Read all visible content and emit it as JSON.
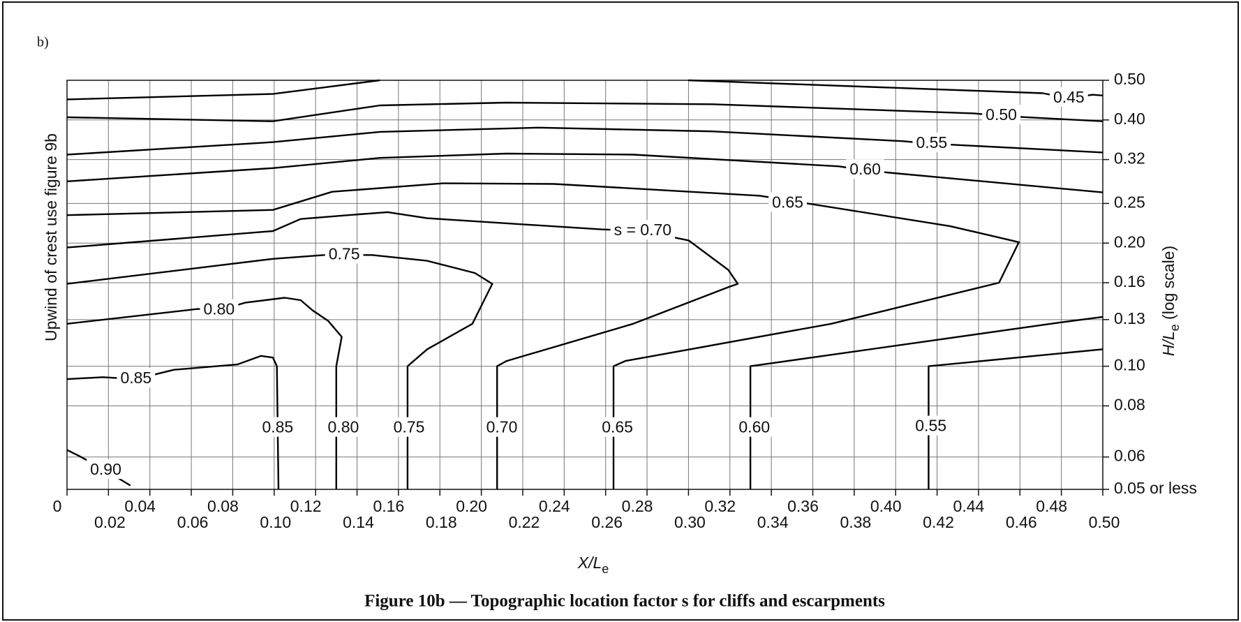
{
  "chart_data": {
    "type": "contour",
    "panel": "b)",
    "title": "Figure 10b — Topographic location factor s for cliffs and escarpments",
    "left_note": "Upwind of crest use figure 9b",
    "xlabel": "X/L",
    "xlabel_sub": "e",
    "ylabel": "H/L",
    "ylabel_sub": "e",
    "ylabel_suffix": " (log scale)",
    "xlim": [
      0,
      0.5
    ],
    "ylim": [
      0.05,
      0.5
    ],
    "ylog": true,
    "grid": true,
    "color": "#000000",
    "xticks": [
      0,
      0.02,
      0.04,
      0.06,
      0.08,
      {
        "value": 0.1,
        "label": "0.10"
      },
      0.12,
      0.14,
      0.16,
      0.18,
      {
        "value": 0.2,
        "label": "0.20"
      },
      0.22,
      0.24,
      0.26,
      0.28,
      {
        "value": 0.3,
        "label": "0.30"
      },
      0.32,
      0.34,
      0.36,
      0.38,
      {
        "value": 0.4,
        "label": "0.40"
      },
      0.42,
      0.44,
      0.46,
      0.48,
      {
        "value": 0.5,
        "label": "0.50"
      }
    ],
    "yticks": [
      {
        "value": 0.5,
        "label": "0.50"
      },
      {
        "value": 0.4,
        "label": "0.40"
      },
      0.32,
      0.25,
      {
        "value": 0.2,
        "label": "0.20"
      },
      0.16,
      0.13,
      {
        "value": 0.1,
        "label": "0.10"
      },
      0.08,
      0.06,
      {
        "value": 0.05,
        "label": "0.05 or less"
      }
    ],
    "contours": [
      {
        "level": 0.45,
        "labels": [
          {
            "text": "0.45",
            "x": 0.4836,
            "y": 0.452
          }
        ],
        "x": [
          0,
          0.0994,
          0.151,
          null,
          0.3,
          0.471,
          0.4836,
          0.495,
          0.5
        ],
        "y": [
          0.449,
          0.463,
          0.5,
          null,
          0.5,
          0.465,
          0.452,
          0.461,
          0.459
        ]
      },
      {
        "level": 0.5,
        "labels": [
          {
            "text": "0.50",
            "x": 0.451,
            "y": 0.409
          }
        ],
        "x": [
          0,
          0.0994,
          0.151,
          0.2122,
          0.3115,
          0.4377,
          0.451,
          0.5
        ],
        "y": [
          0.406,
          0.397,
          0.434,
          0.441,
          0.437,
          0.415,
          0.409,
          0.397
        ]
      },
      {
        "level": 0.55,
        "labels": [
          {
            "text": "0.55",
            "x": 0.4174,
            "y": 0.35
          },
          {
            "text": "0.55",
            "x": 0.417,
            "y": 0.0711
          }
        ],
        "x": [
          0,
          0.0994,
          0.151,
          0.2275,
          0.3115,
          0.4033,
          0.4174,
          0.5,
          null,
          0.4159,
          0.4159,
          0.5
        ],
        "y": [
          0.329,
          0.353,
          0.374,
          0.383,
          0.375,
          0.355,
          0.35,
          0.333,
          null,
          0.05,
          0.1,
          0.11
        ]
      },
      {
        "level": 0.6,
        "labels": [
          {
            "text": "0.60",
            "x": 0.3853,
            "y": 0.301
          },
          {
            "text": "0.60",
            "x": 0.3318,
            "y": 0.0705
          }
        ],
        "x": [
          0,
          0.0994,
          0.151,
          0.2122,
          0.2733,
          0.3727,
          0.3853,
          0.5,
          null,
          0.3299,
          0.3299,
          0.4797,
          0.5
        ],
        "y": [
          0.283,
          0.305,
          0.323,
          0.331,
          0.329,
          0.308,
          0.301,
          0.266,
          null,
          0.05,
          0.1,
          0.128,
          0.132
        ]
      },
      {
        "level": 0.65,
        "labels": [
          {
            "text": "0.65",
            "x": 0.3479,
            "y": 0.25
          },
          {
            "text": "0.65",
            "x": 0.2657,
            "y": 0.0705
          }
        ],
        "x": [
          0,
          0.0994,
          0.128,
          0.1816,
          0.2351,
          0.3345,
          0.3574,
          0.4262,
          0.4595,
          0.4499,
          0.3689,
          0.2695,
          0.2638,
          0.2638
        ],
        "y": [
          0.234,
          0.241,
          0.267,
          0.28,
          0.279,
          0.261,
          0.25,
          0.22,
          0.201,
          0.16,
          0.127,
          0.103,
          0.1,
          0.05
        ]
      },
      {
        "level": 0.7,
        "labels": [
          {
            "text": "s = 0.70",
            "x": 0.2779,
            "y": 0.214
          },
          {
            "text": "0.70",
            "x": 0.2099,
            "y": 0.0705
          }
        ],
        "x": [
          0,
          0.0994,
          0.1128,
          0.1357,
          0.1548,
          0.1739,
          0.258,
          0.2779,
          0.3001,
          0.3192,
          0.3238,
          0.3192,
          0.2733,
          0.2122,
          0.2076,
          0.2076
        ],
        "y": [
          0.195,
          0.214,
          0.229,
          0.234,
          0.238,
          0.23,
          0.216,
          0.214,
          0.203,
          0.172,
          0.159,
          0.156,
          0.127,
          0.103,
          0.1,
          0.05
        ]
      },
      {
        "level": 0.75,
        "labels": [
          {
            "text": "0.75",
            "x": 0.1338,
            "y": 0.187
          },
          {
            "text": "0.75",
            "x": 0.1651,
            "y": 0.0705
          }
        ],
        "x": [
          0,
          0.0994,
          0.1242,
          0.1338,
          0.1472,
          0.1739,
          0.1969,
          0.2053,
          0.1957,
          0.1739,
          0.1644,
          0.1644
        ],
        "y": [
          0.159,
          0.183,
          0.187,
          0.187,
          0.187,
          0.181,
          0.169,
          0.159,
          0.127,
          0.11,
          0.1,
          0.05
        ]
      },
      {
        "level": 0.8,
        "labels": [
          {
            "text": "0.80",
            "x": 0.0734,
            "y": 0.137
          },
          {
            "text": "0.80",
            "x": 0.1334,
            "y": 0.0705
          }
        ],
        "x": [
          0,
          0.0631,
          0.0734,
          0.086,
          0.1051,
          0.1128,
          0.1185,
          0.1261,
          0.1326,
          0.13,
          0.13
        ],
        "y": [
          0.127,
          0.138,
          0.137,
          0.143,
          0.147,
          0.145,
          0.137,
          0.129,
          0.118,
          0.1,
          0.05
        ]
      },
      {
        "level": 0.85,
        "labels": [
          {
            "text": "0.85",
            "x": 0.0333,
            "y": 0.093
          },
          {
            "text": "0.85",
            "x": 0.1017,
            "y": 0.0705
          }
        ],
        "x": [
          0,
          0.0172,
          0.0333,
          0.0516,
          0.0822,
          0.0937,
          0.0994,
          0.1013,
          0.1021
        ],
        "y": [
          0.093,
          0.094,
          0.093,
          0.098,
          0.101,
          0.106,
          0.105,
          0.1,
          0.05
        ]
      },
      {
        "level": 0.9,
        "labels": [
          {
            "text": "0.90",
            "x": 0.0187,
            "y": 0.0556
          }
        ],
        "x": [
          0,
          0.0057,
          0.0187,
          0.0306
        ],
        "y": [
          0.0624,
          0.0604,
          0.0556,
          0.0511
        ]
      }
    ]
  }
}
